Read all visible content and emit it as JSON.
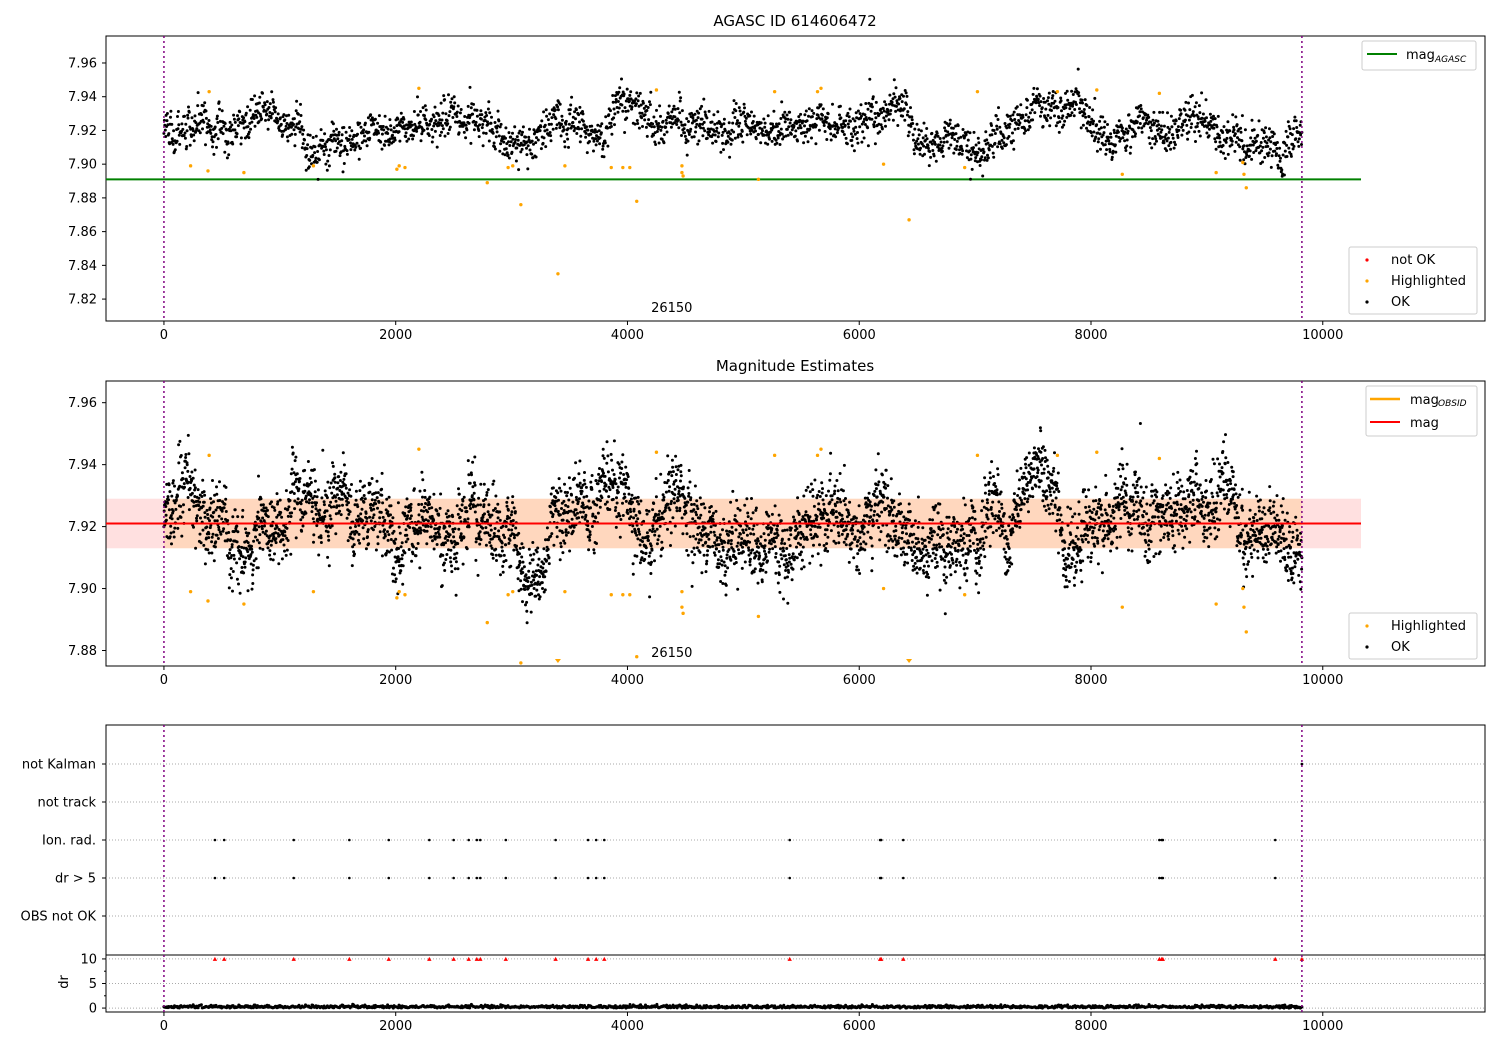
{
  "chart_data": [
    {
      "type": "scatter",
      "title": "AGASC ID 614606472",
      "xlim": [
        -500,
        11400
      ],
      "ylim": [
        7.807,
        7.976
      ],
      "x_ticks": [
        0,
        2000,
        4000,
        6000,
        8000,
        10000
      ],
      "y_ticks": [
        7.82,
        7.84,
        7.86,
        7.88,
        7.9,
        7.92,
        7.94,
        7.96
      ],
      "obsid_annotation": "26150",
      "obsid_annotation_x": 4900,
      "obs_boundaries": [
        0,
        9820
      ],
      "reference_lines": [
        {
          "name": "mag_AGASC",
          "legend_label": "mag",
          "legend_sub": "AGASC",
          "y": 7.891,
          "x_range": [
            -500,
            10330
          ],
          "color": "#008000"
        }
      ],
      "point_categories": [
        {
          "name": "not OK",
          "color": "#ff0000"
        },
        {
          "name": "Highlighted",
          "color": "#ffa500"
        },
        {
          "name": "OK",
          "color": "#000000"
        }
      ],
      "series_summary": {
        "name": "OK",
        "x_range": [
          0,
          9820
        ],
        "center": 7.921,
        "spread": 0.02
      },
      "highlighted_points": [
        {
          "x": 230,
          "y": 7.899
        },
        {
          "x": 380,
          "y": 7.896
        },
        {
          "x": 390,
          "y": 7.943
        },
        {
          "x": 690,
          "y": 7.895
        },
        {
          "x": 1290,
          "y": 7.899
        },
        {
          "x": 2010,
          "y": 7.897
        },
        {
          "x": 2030,
          "y": 7.899
        },
        {
          "x": 2080,
          "y": 7.898
        },
        {
          "x": 2200,
          "y": 7.945
        },
        {
          "x": 2790,
          "y": 7.889
        },
        {
          "x": 2970,
          "y": 7.898
        },
        {
          "x": 3010,
          "y": 7.899
        },
        {
          "x": 3080,
          "y": 7.876
        },
        {
          "x": 3400,
          "y": 7.835
        },
        {
          "x": 3460,
          "y": 7.899
        },
        {
          "x": 3860,
          "y": 7.898
        },
        {
          "x": 3960,
          "y": 7.898
        },
        {
          "x": 4020,
          "y": 7.898
        },
        {
          "x": 4080,
          "y": 7.878
        },
        {
          "x": 4250,
          "y": 7.944
        },
        {
          "x": 4470,
          "y": 7.899
        },
        {
          "x": 4470,
          "y": 7.895
        },
        {
          "x": 4480,
          "y": 7.893
        },
        {
          "x": 5130,
          "y": 7.891
        },
        {
          "x": 5270,
          "y": 7.943
        },
        {
          "x": 5640,
          "y": 7.943
        },
        {
          "x": 5670,
          "y": 7.945
        },
        {
          "x": 6210,
          "y": 7.9
        },
        {
          "x": 6430,
          "y": 7.867
        },
        {
          "x": 6910,
          "y": 7.898
        },
        {
          "x": 7020,
          "y": 7.943
        },
        {
          "x": 7710,
          "y": 7.943
        },
        {
          "x": 8050,
          "y": 7.944
        },
        {
          "x": 8270,
          "y": 7.894
        },
        {
          "x": 8590,
          "y": 7.942
        },
        {
          "x": 9080,
          "y": 7.895
        },
        {
          "x": 9310,
          "y": 7.901
        },
        {
          "x": 9320,
          "y": 7.894
        },
        {
          "x": 9340,
          "y": 7.886
        }
      ],
      "legend_placement": "upper-right and lower-right"
    },
    {
      "type": "scatter",
      "title": "Magnitude Estimates",
      "xlim": [
        -500,
        11400
      ],
      "ylim": [
        7.875,
        7.967
      ],
      "x_ticks": [
        0,
        2000,
        4000,
        6000,
        8000,
        10000
      ],
      "y_ticks": [
        7.88,
        7.9,
        7.92,
        7.94,
        7.96
      ],
      "obsid_annotation": "26150",
      "obsid_annotation_x": 4900,
      "obs_boundaries": [
        0,
        9820
      ],
      "reference_lines": [
        {
          "name": "mag_OBSID",
          "legend_label": "mag",
          "legend_sub": "OBSID",
          "y": 7.921,
          "x_range": [
            0,
            9820
          ],
          "color": "#ffa500"
        },
        {
          "name": "mag",
          "legend_label": "mag",
          "y": 7.921,
          "x_range": [
            -500,
            10330
          ],
          "color": "#ff0000"
        }
      ],
      "bands": [
        {
          "name": "mag band",
          "y_range": [
            7.913,
            7.929
          ],
          "x_range": [
            -500,
            10330
          ],
          "color": "#ff0000"
        },
        {
          "name": "obsid band",
          "y_range": [
            7.913,
            7.929
          ],
          "x_range": [
            0,
            9820
          ],
          "color": "#ffa500"
        }
      ],
      "point_categories": [
        {
          "name": "Highlighted",
          "color": "#ffa500"
        },
        {
          "name": "OK",
          "color": "#000000"
        }
      ],
      "series_summary": {
        "name": "OK",
        "x_range": [
          0,
          9820
        ],
        "center": 7.921,
        "spread": 0.02
      },
      "highlighted_points": [
        {
          "x": 230,
          "y": 7.899
        },
        {
          "x": 380,
          "y": 7.896
        },
        {
          "x": 390,
          "y": 7.943
        },
        {
          "x": 690,
          "y": 7.895
        },
        {
          "x": 1290,
          "y": 7.899
        },
        {
          "x": 2010,
          "y": 7.897
        },
        {
          "x": 2030,
          "y": 7.899
        },
        {
          "x": 2080,
          "y": 7.898
        },
        {
          "x": 2200,
          "y": 7.945
        },
        {
          "x": 2790,
          "y": 7.889
        },
        {
          "x": 2970,
          "y": 7.898
        },
        {
          "x": 3010,
          "y": 7.899
        },
        {
          "x": 3080,
          "y": 7.876
        },
        {
          "x": 3460,
          "y": 7.899
        },
        {
          "x": 3860,
          "y": 7.898
        },
        {
          "x": 3960,
          "y": 7.898
        },
        {
          "x": 4020,
          "y": 7.898
        },
        {
          "x": 4080,
          "y": 7.878
        },
        {
          "x": 4250,
          "y": 7.944
        },
        {
          "x": 4470,
          "y": 7.899
        },
        {
          "x": 4470,
          "y": 7.894
        },
        {
          "x": 4480,
          "y": 7.892
        },
        {
          "x": 5130,
          "y": 7.891
        },
        {
          "x": 5270,
          "y": 7.943
        },
        {
          "x": 5640,
          "y": 7.943
        },
        {
          "x": 5670,
          "y": 7.945
        },
        {
          "x": 6210,
          "y": 7.9
        },
        {
          "x": 6910,
          "y": 7.898
        },
        {
          "x": 7020,
          "y": 7.943
        },
        {
          "x": 7710,
          "y": 7.943
        },
        {
          "x": 8050,
          "y": 7.944
        },
        {
          "x": 8270,
          "y": 7.894
        },
        {
          "x": 8590,
          "y": 7.942
        },
        {
          "x": 9080,
          "y": 7.895
        },
        {
          "x": 9310,
          "y": 7.9
        },
        {
          "x": 9320,
          "y": 7.894
        },
        {
          "x": 9340,
          "y": 7.886
        }
      ],
      "out_of_range_markers": [
        {
          "x": 3400,
          "direction": "down"
        },
        {
          "x": 6430,
          "direction": "down"
        }
      ],
      "legend_placement": "upper-right and lower-right"
    },
    {
      "type": "scatter",
      "title": "",
      "xlim": [
        -500,
        11400
      ],
      "y_categories": [
        "not Kalman",
        "not track",
        "Ion. rad.",
        "dr > 5",
        "OBS not OK"
      ],
      "flag_events": [
        {
          "category": "Ion. rad.",
          "x": [
            440,
            520,
            1120,
            1600,
            1940,
            2290,
            2500,
            2630,
            2700,
            2730,
            2950,
            3380,
            3660,
            3730,
            3800,
            5400,
            6180,
            6190,
            6380,
            8590,
            8610,
            8620,
            9590
          ]
        },
        {
          "category": "dr > 5",
          "x": [
            440,
            520,
            1120,
            1600,
            1940,
            2290,
            2500,
            2630,
            2700,
            2730,
            2950,
            3380,
            3660,
            3730,
            3800,
            5400,
            6180,
            6190,
            6380,
            8590,
            8610,
            8620,
            9590
          ]
        },
        {
          "category": "not Kalman",
          "x": [
            9820
          ]
        }
      ],
      "obs_boundaries": [
        0,
        9820
      ],
      "gridlines": "dotted"
    },
    {
      "type": "scatter",
      "title": "",
      "ylabel": "dr",
      "xlim": [
        -500,
        11400
      ],
      "ylim": [
        -0.8,
        10.8
      ],
      "x_ticks": [
        0,
        2000,
        4000,
        6000,
        8000,
        10000
      ],
      "y_ticks": [
        0,
        5,
        10
      ],
      "series_summary": {
        "name": "dr",
        "x_range": [
          0,
          9820
        ],
        "center": 0.25,
        "spread": 0.3,
        "color": "#000000"
      },
      "capped_markers": {
        "y": 10,
        "color": "#ff0000",
        "x": [
          440,
          520,
          1120,
          1600,
          1940,
          2290,
          2500,
          2630,
          2700,
          2730,
          2950,
          3380,
          3660,
          3730,
          3800,
          5400,
          6180,
          6190,
          6380,
          8590,
          8610,
          8620,
          9590,
          9820
        ]
      },
      "obs_boundaries": [
        0,
        9820
      ]
    }
  ]
}
